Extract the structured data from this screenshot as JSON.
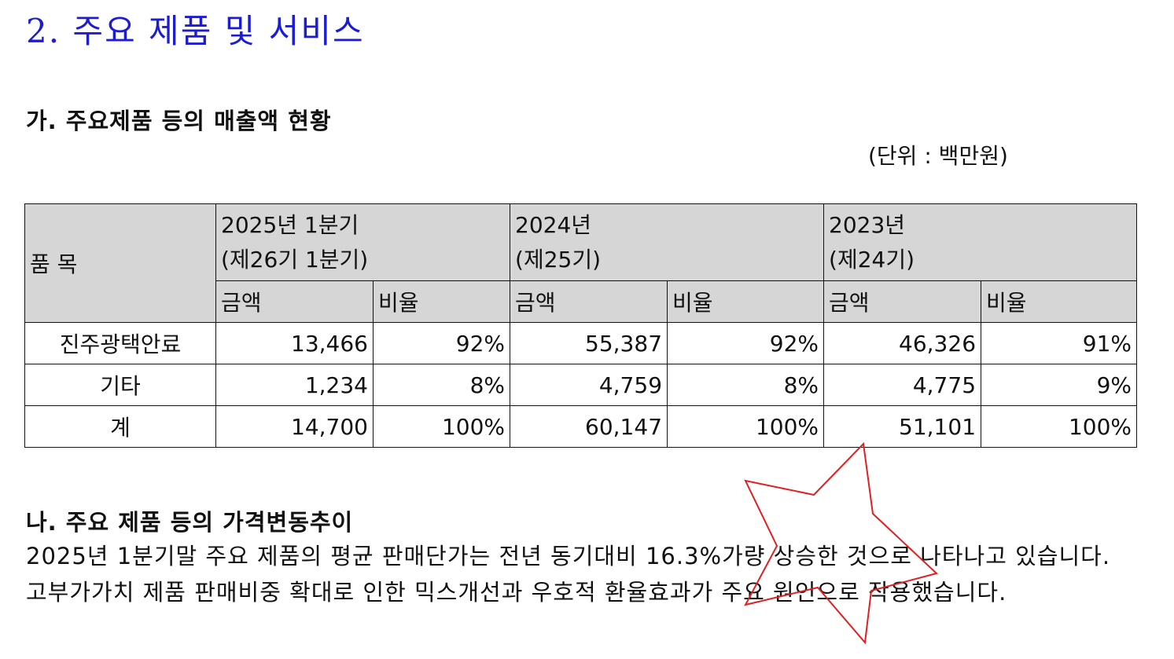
{
  "section_title": "2. 주요 제품 및 서비스",
  "subsection_a": {
    "title": "가. 주요제품 등의 매출액 현황",
    "unit": "(단위 : 백만원)"
  },
  "table": {
    "item_header": "품 목",
    "periods": [
      {
        "line1": "2025년 1분기",
        "line2": "(제26기 1분기)"
      },
      {
        "line1": "2024년",
        "line2": "(제25기)"
      },
      {
        "line1": "2023년",
        "line2": "(제24기)"
      }
    ],
    "sub_headers": {
      "amount": "금액",
      "ratio": "비율"
    },
    "rows": [
      {
        "name": "진주광택안료",
        "cells": [
          "13,466",
          "92%",
          "55,387",
          "92%",
          "46,326",
          "91%"
        ]
      },
      {
        "name": "기타",
        "cells": [
          "1,234",
          "8%",
          "4,759",
          "8%",
          "4,775",
          "9%"
        ]
      },
      {
        "name": "계",
        "cells": [
          "14,700",
          "100%",
          "60,147",
          "100%",
          "51,101",
          "100%"
        ]
      }
    ]
  },
  "subsection_b": {
    "title": "나. 주요 제품 등의 가격변동추이",
    "paragraph": "2025년 1분기말 주요 제품의 평균 판매단가는 전년 동기대비 16.3%가량 상승한 것으로 나타나고 있습니다. 고부가가치 제품 판매비중 확대로 인한 믹스개선과 우호적 환율효과가 주요 원인으로 작용했습니다."
  },
  "annotation": {
    "shape": "star-outline",
    "color": "#e02020"
  }
}
